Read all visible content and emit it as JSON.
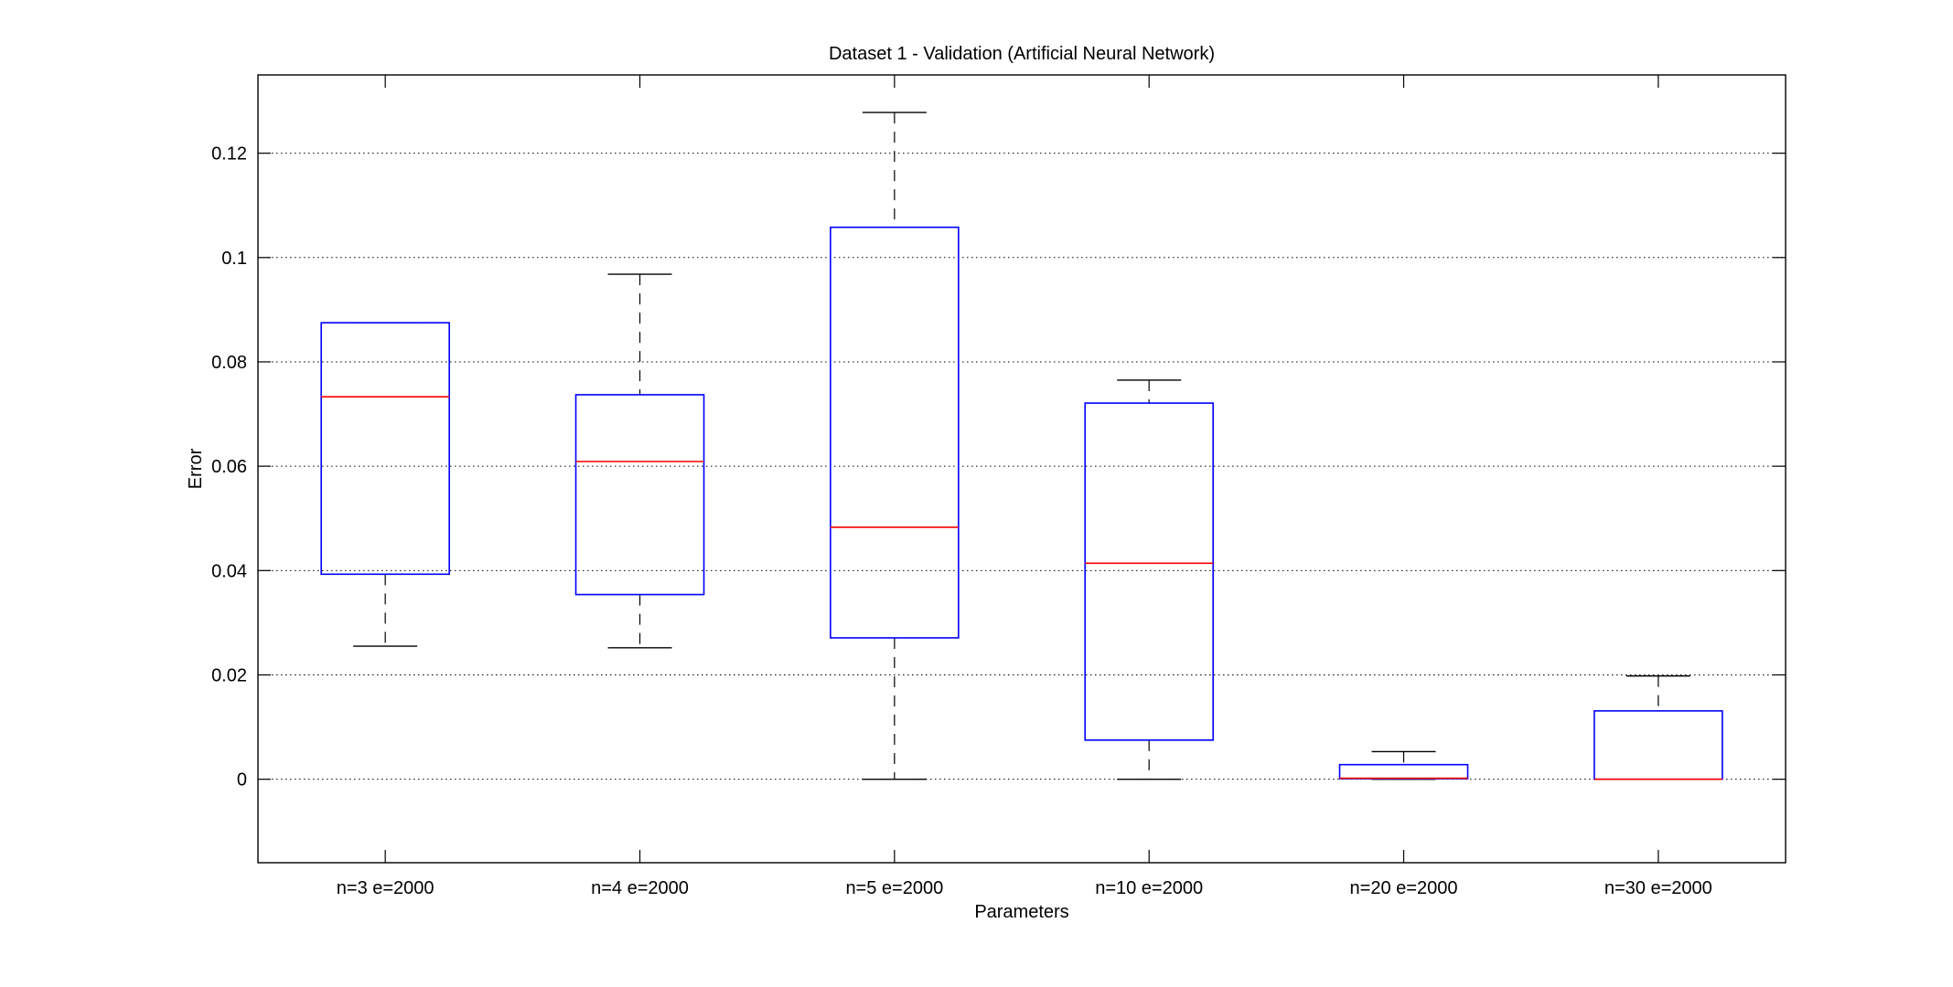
{
  "chart_data": {
    "type": "box",
    "title": "Dataset 1 - Validation (Artificial Neural Network)",
    "xlabel": "Parameters",
    "ylabel": "Error",
    "ylim": [
      -0.016,
      0.135
    ],
    "yticks": [
      0,
      0.02,
      0.04,
      0.06,
      0.08,
      0.1,
      0.12
    ],
    "ytick_labels": [
      "0",
      "0.02",
      "0.04",
      "0.06",
      "0.08",
      "0.1",
      "0.12"
    ],
    "grid": "horizontal-dotted",
    "categories": [
      "n=3 e=2000",
      "n=4 e=2000",
      "n=5 e=2000",
      "n=10 e=2000",
      "n=20 e=2000",
      "n=30 e=2000"
    ],
    "boxes": [
      {
        "min": 0.0255,
        "q1": 0.0393,
        "median": 0.0733,
        "q3": 0.0875,
        "max": 0.0875
      },
      {
        "min": 0.0252,
        "q1": 0.0354,
        "median": 0.0609,
        "q3": 0.0737,
        "max": 0.0968
      },
      {
        "min": 0.0,
        "q1": 0.0271,
        "median": 0.0483,
        "q3": 0.1058,
        "max": 0.1278
      },
      {
        "min": 0.0,
        "q1": 0.0075,
        "median": 0.0414,
        "q3": 0.0721,
        "max": 0.0765
      },
      {
        "min": 0.0,
        "q1": 0.0001,
        "median": 0.0002,
        "q3": 0.0028,
        "max": 0.0053
      },
      {
        "min": 0.0,
        "q1": 0.0,
        "median": 0.0,
        "q3": 0.0131,
        "max": 0.0198
      }
    ],
    "colors": {
      "box": "#0000ff",
      "median": "#ff0000",
      "whisker": "#000000",
      "grid": "#000000",
      "axes": "#000000"
    }
  }
}
